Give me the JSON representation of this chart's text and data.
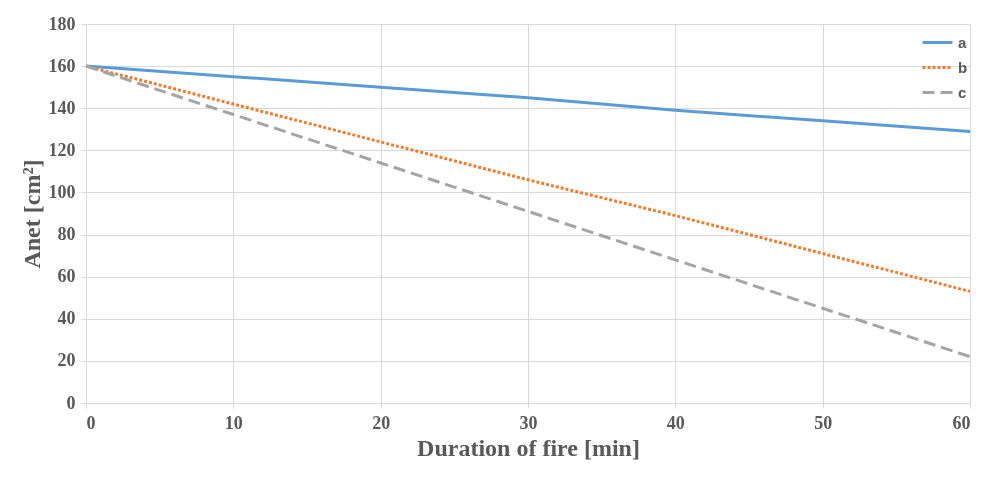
{
  "chart_data": {
    "type": "line",
    "xlabel": "Duration of fire [min]",
    "ylabel": "Anet [cm²]",
    "x": [
      0,
      10,
      20,
      30,
      40,
      50,
      60
    ],
    "series": [
      {
        "name": "a",
        "color": "#5b9bd5",
        "line_style": "solid",
        "values": [
          160,
          155,
          150,
          145,
          139,
          134,
          129
        ]
      },
      {
        "name": "b",
        "color": "#ed7d31",
        "line_style": "dotted",
        "values": [
          160,
          142,
          124,
          106,
          89,
          71,
          53
        ]
      },
      {
        "name": "c",
        "color": "#a5a5a5",
        "line_style": "dashed",
        "values": [
          160,
          137,
          114,
          91,
          68,
          45,
          22
        ]
      }
    ],
    "xlim": [
      0,
      60
    ],
    "xticks": [
      0,
      10,
      20,
      30,
      40,
      50,
      60
    ],
    "ylim": [
      0,
      180
    ],
    "yticks": [
      0,
      20,
      40,
      60,
      80,
      100,
      120,
      140,
      160,
      180
    ],
    "grid": true,
    "legend": "top right",
    "marker": "none"
  }
}
